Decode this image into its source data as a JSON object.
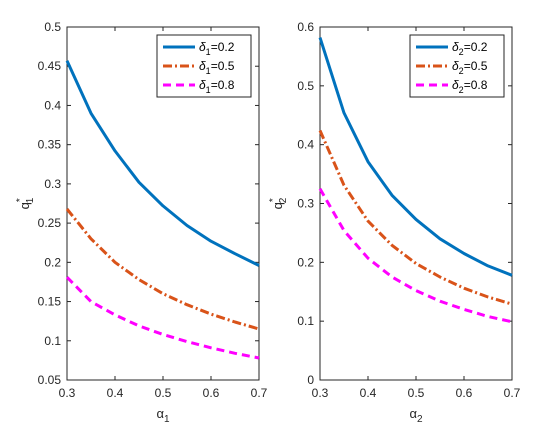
{
  "chart_data": [
    {
      "type": "line",
      "xlabel": "α",
      "xlabel_sub": "1",
      "ylabel": "q",
      "ylabel_sub": "1",
      "ylabel_sup": "*",
      "xlim": [
        0.3,
        0.7
      ],
      "ylim": [
        0.05,
        0.5
      ],
      "xticks": [
        0.3,
        0.4,
        0.5,
        0.6,
        0.7
      ],
      "xtick_labels": [
        "0.3",
        "0.4",
        "0.5",
        "0.6",
        "0.7"
      ],
      "yticks": [
        0.05,
        0.1,
        0.15,
        0.2,
        0.25,
        0.3,
        0.35,
        0.4,
        0.45,
        0.5
      ],
      "ytick_labels": [
        "0.05",
        "0.1",
        "0.15",
        "0.2",
        "0.25",
        "0.3",
        "0.35",
        "0.4",
        "0.45",
        "0.5"
      ],
      "grid": false,
      "legend_position": "top-right",
      "x": [
        0.3,
        0.35,
        0.4,
        0.45,
        0.5,
        0.55,
        0.6,
        0.65,
        0.7
      ],
      "series": [
        {
          "name_base": "δ",
          "name_sub": "1",
          "name_suffix": "=0.2",
          "color": "#0072BD",
          "dash": "solid",
          "values": [
            0.457,
            0.39,
            0.342,
            0.302,
            0.272,
            0.247,
            0.227,
            0.211,
            0.196
          ]
        },
        {
          "name_base": "δ",
          "name_sub": "1",
          "name_suffix": "=0.5",
          "color": "#D95319",
          "dash": "dashdot",
          "values": [
            0.268,
            0.23,
            0.2,
            0.178,
            0.16,
            0.146,
            0.134,
            0.124,
            0.115
          ]
        },
        {
          "name_base": "δ",
          "name_sub": "1",
          "name_suffix": "=0.8",
          "color": "#FF00FF",
          "dash": "dashed",
          "values": [
            0.181,
            0.15,
            0.133,
            0.119,
            0.108,
            0.099,
            0.091,
            0.084,
            0.078
          ]
        }
      ]
    },
    {
      "type": "line",
      "xlabel": "α",
      "xlabel_sub": "2",
      "ylabel": "q",
      "ylabel_sub": "2",
      "ylabel_sup": "*",
      "xlim": [
        0.3,
        0.7
      ],
      "ylim": [
        0,
        0.6
      ],
      "xticks": [
        0.3,
        0.4,
        0.5,
        0.6,
        0.7
      ],
      "xtick_labels": [
        "0.3",
        "0.4",
        "0.5",
        "0.6",
        "0.7"
      ],
      "yticks": [
        0,
        0.1,
        0.2,
        0.3,
        0.4,
        0.5,
        0.6
      ],
      "ytick_labels": [
        "0",
        "0.1",
        "0.2",
        "0.3",
        "0.4",
        "0.5",
        "0.6"
      ],
      "grid": false,
      "legend_position": "top-right",
      "x": [
        0.3,
        0.35,
        0.4,
        0.45,
        0.5,
        0.55,
        0.6,
        0.65,
        0.7
      ],
      "series": [
        {
          "name_base": "δ",
          "name_sub": "2",
          "name_suffix": "=0.2",
          "color": "#0072BD",
          "dash": "solid",
          "values": [
            0.582,
            0.454,
            0.371,
            0.314,
            0.273,
            0.24,
            0.215,
            0.194,
            0.178
          ]
        },
        {
          "name_base": "δ",
          "name_sub": "2",
          "name_suffix": "=0.5",
          "color": "#D95319",
          "dash": "dashdot",
          "values": [
            0.424,
            0.331,
            0.27,
            0.229,
            0.198,
            0.175,
            0.156,
            0.141,
            0.129
          ]
        },
        {
          "name_base": "δ",
          "name_sub": "2",
          "name_suffix": "=0.8",
          "color": "#FF00FF",
          "dash": "dashed",
          "values": [
            0.325,
            0.254,
            0.207,
            0.175,
            0.152,
            0.134,
            0.12,
            0.108,
            0.099
          ]
        }
      ]
    }
  ]
}
